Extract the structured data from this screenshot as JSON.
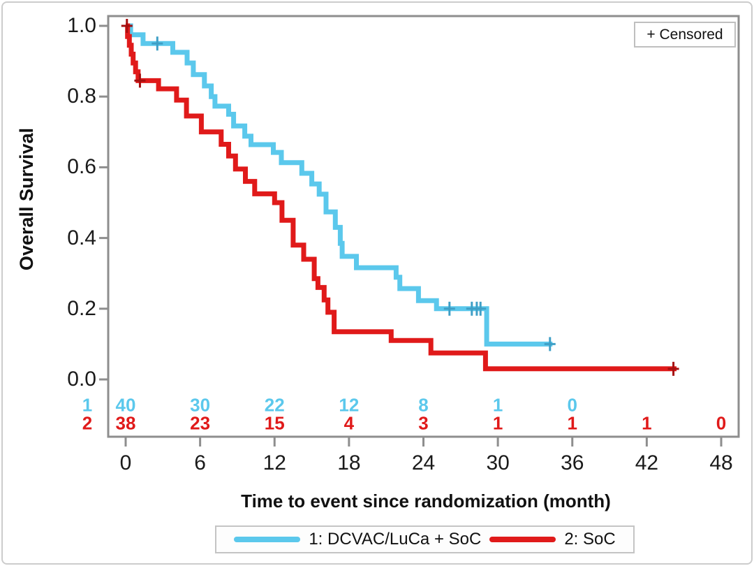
{
  "window": {
    "background": "#ffffff",
    "border_color": "#cccccc",
    "frame_color": "#8e8e8e",
    "text_color": "#1a1a1a"
  },
  "chart_data": {
    "type": "line",
    "subtype": "kaplan-meier-step",
    "title": "",
    "xlabel": "Time to event since randomization (month)",
    "ylabel": "Overall Survival",
    "censored_label": "+ Censored",
    "xlim": [
      0,
      48
    ],
    "ylim": [
      0.0,
      1.0
    ],
    "x_ticks": [
      0,
      6,
      12,
      18,
      24,
      30,
      36,
      42,
      48
    ],
    "y_ticks": [
      "1.0",
      "0.8",
      "0.6",
      "0.4",
      "0.2",
      "0.0"
    ],
    "grid": false,
    "legend_position": "bottom-center",
    "legend": [
      {
        "label": "1: DCVAC/LuCa + SoC",
        "color": "#5bc8ec"
      },
      {
        "label": "2: SoC",
        "color": "#e01a1a"
      }
    ],
    "series": [
      {
        "name": "1: DCVAC/LuCa + SoC",
        "color": "#5bc8ec",
        "censor_color": "#3f9fc6",
        "end_month": 34.4,
        "steps": [
          [
            0,
            1.0
          ],
          [
            0.4,
            0.975
          ],
          [
            1.4,
            0.95
          ],
          [
            3.8,
            0.925
          ],
          [
            4.95,
            0.895
          ],
          [
            5.45,
            0.862
          ],
          [
            6.35,
            0.83
          ],
          [
            6.9,
            0.8
          ],
          [
            7.2,
            0.773
          ],
          [
            8.3,
            0.75
          ],
          [
            8.7,
            0.717
          ],
          [
            9.6,
            0.688
          ],
          [
            10.1,
            0.664
          ],
          [
            11.9,
            0.642
          ],
          [
            12.55,
            0.613
          ],
          [
            14.2,
            0.583
          ],
          [
            15.0,
            0.553
          ],
          [
            15.6,
            0.524
          ],
          [
            16.15,
            0.474
          ],
          [
            16.9,
            0.43
          ],
          [
            17.3,
            0.385
          ],
          [
            17.45,
            0.348
          ],
          [
            18.6,
            0.316
          ],
          [
            21.8,
            0.289
          ],
          [
            22.1,
            0.257
          ],
          [
            23.6,
            0.223
          ],
          [
            25.05,
            0.2
          ],
          [
            29.1,
            0.1
          ]
        ],
        "censors": [
          [
            2.55,
            0.95
          ],
          [
            26.1,
            0.2
          ],
          [
            27.9,
            0.2
          ],
          [
            28.3,
            0.2
          ],
          [
            28.6,
            0.2
          ],
          [
            34.2,
            0.1
          ]
        ]
      },
      {
        "name": "2: SoC",
        "color": "#e01a1a",
        "censor_color": "#a50f0f",
        "end_month": 44.4,
        "steps": [
          [
            0,
            1.0
          ],
          [
            0.15,
            0.97
          ],
          [
            0.3,
            0.945
          ],
          [
            0.45,
            0.92
          ],
          [
            0.6,
            0.895
          ],
          [
            0.8,
            0.87
          ],
          [
            1.0,
            0.845
          ],
          [
            2.65,
            0.822
          ],
          [
            4.1,
            0.79
          ],
          [
            4.9,
            0.745
          ],
          [
            6.1,
            0.7
          ],
          [
            7.7,
            0.665
          ],
          [
            8.3,
            0.632
          ],
          [
            8.85,
            0.595
          ],
          [
            9.65,
            0.56
          ],
          [
            10.4,
            0.525
          ],
          [
            12.0,
            0.5
          ],
          [
            12.6,
            0.45
          ],
          [
            13.5,
            0.38
          ],
          [
            14.35,
            0.34
          ],
          [
            15.2,
            0.285
          ],
          [
            15.5,
            0.26
          ],
          [
            16.0,
            0.225
          ],
          [
            16.3,
            0.19
          ],
          [
            16.8,
            0.135
          ],
          [
            21.4,
            0.11
          ],
          [
            24.6,
            0.075
          ],
          [
            29.0,
            0.03
          ]
        ],
        "censors": [
          [
            0.1,
            1.0
          ],
          [
            1.15,
            0.845
          ],
          [
            44.15,
            0.03
          ]
        ]
      }
    ],
    "at_risk_table": {
      "rows": [
        {
          "group": "1",
          "color": "#5bc8ec",
          "months": [
            0,
            6,
            12,
            18,
            24,
            30,
            36
          ],
          "values": [
            40,
            30,
            22,
            12,
            8,
            1,
            0
          ]
        },
        {
          "group": "2",
          "color": "#e01a1a",
          "months": [
            0,
            6,
            12,
            18,
            24,
            30,
            36,
            42,
            48
          ],
          "values": [
            38,
            23,
            15,
            4,
            3,
            1,
            1,
            1,
            0
          ]
        }
      ]
    }
  }
}
